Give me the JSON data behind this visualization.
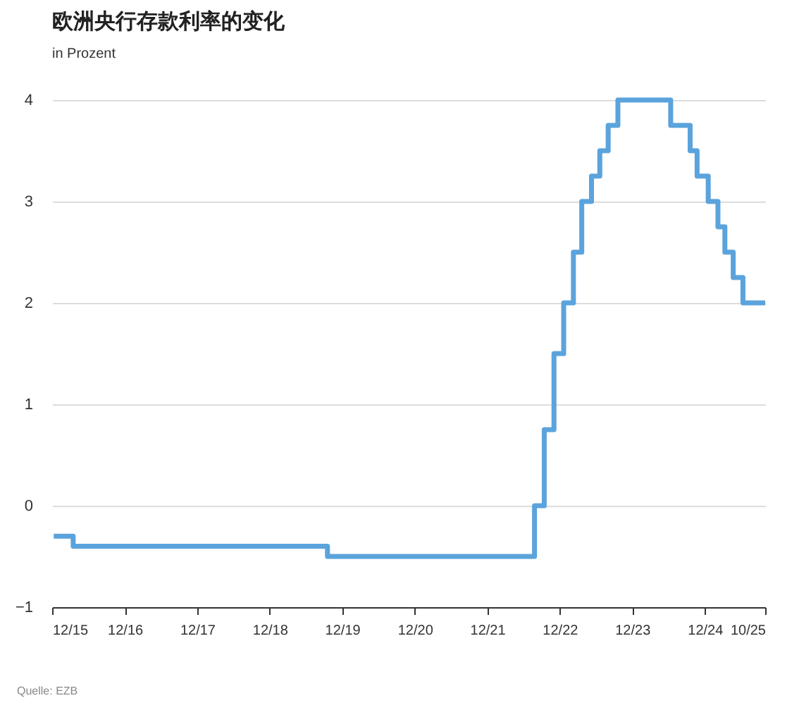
{
  "chart_data": {
    "type": "step",
    "title": "欧洲央行存款利率的变化",
    "subtitle": "in Prozent",
    "annotations": [
      "Quelle: EZB"
    ],
    "x": [
      "2015-12-09",
      "2016-03-16",
      "2019-09-18",
      "2022-07-27",
      "2022-09-14",
      "2022-11-02",
      "2022-12-21",
      "2023-02-08",
      "2023-03-22",
      "2023-05-10",
      "2023-06-21",
      "2023-08-02",
      "2023-09-20",
      "2024-06-12",
      "2024-09-18",
      "2024-10-23",
      "2024-12-18",
      "2025-02-05",
      "2025-03-12",
      "2025-04-23",
      "2025-06-11",
      "2025-10-01"
    ],
    "series": [
      {
        "color": "#5ba3dc",
        "values": [
          -0.3,
          -0.4,
          -0.5,
          0,
          0.75,
          1.5,
          2,
          2.5,
          3,
          3.25,
          3.5,
          3.75,
          4,
          3.75,
          3.5,
          3.25,
          3,
          2.75,
          2.5,
          2.25,
          2,
          2
        ]
      }
    ],
    "xlim": [
      "2015-12-01",
      "2025-10-01"
    ],
    "xticks": [
      {
        "value": "2015-12-01",
        "label": "12/15"
      },
      {
        "value": "2016-12-01",
        "label": "12/16"
      },
      {
        "value": "2017-12-01",
        "label": "12/17"
      },
      {
        "value": "2018-12-01",
        "label": "12/18"
      },
      {
        "value": "2019-12-01",
        "label": "12/19"
      },
      {
        "value": "2020-12-01",
        "label": "12/20"
      },
      {
        "value": "2021-12-01",
        "label": "12/21"
      },
      {
        "value": "2022-12-01",
        "label": "12/22"
      },
      {
        "value": "2023-12-01",
        "label": "12/23"
      },
      {
        "value": "2024-12-01",
        "label": "12/24"
      },
      {
        "value": "2025-10-01",
        "label": "10/25"
      }
    ],
    "ylim": [
      -1,
      4
    ],
    "yticks": [
      -1,
      0,
      1,
      2,
      3,
      4
    ],
    "grid": "y",
    "line_style": "solid"
  }
}
